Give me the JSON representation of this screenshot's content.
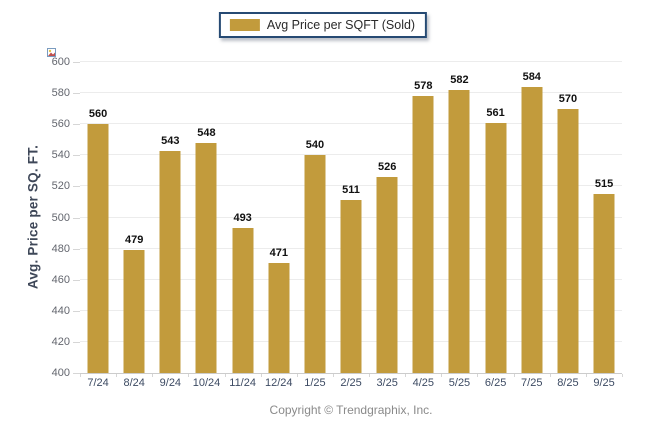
{
  "legend": {
    "label": "Avg Price per SQFT (Sold)"
  },
  "y_axis": {
    "title": "Avg. Price per SQ. FT."
  },
  "footer": {
    "copyright": "Copyright © Trendgraphix, Inc."
  },
  "colors": {
    "bar": "#C29B3C",
    "grid": "#ECECEC",
    "axis_line": "#CCCCCC",
    "y_tick_text": "#63666E",
    "x_label_text": "#3D4B63",
    "data_label": "#111111",
    "legend_border": "#264A73",
    "y_title": "#3E4758",
    "footer_text": "#8A8A8A"
  },
  "chart_data": {
    "type": "bar",
    "title": "Avg Price per SQFT (Sold)",
    "categories": [
      "7/24",
      "8/24",
      "9/24",
      "10/24",
      "11/24",
      "12/24",
      "1/25",
      "2/25",
      "3/25",
      "4/25",
      "5/25",
      "6/25",
      "7/25",
      "8/25",
      "9/25"
    ],
    "values": [
      560,
      479,
      543,
      548,
      493,
      471,
      540,
      511,
      526,
      578,
      582,
      561,
      584,
      570,
      515
    ],
    "xlabel": "",
    "ylabel": "Avg. Price per SQ. FT.",
    "ylim": [
      400,
      600
    ],
    "ytick_step": 20,
    "grid": true,
    "data_labels": true,
    "legend_position": "top-center",
    "bar_color": "#C29B3C"
  }
}
